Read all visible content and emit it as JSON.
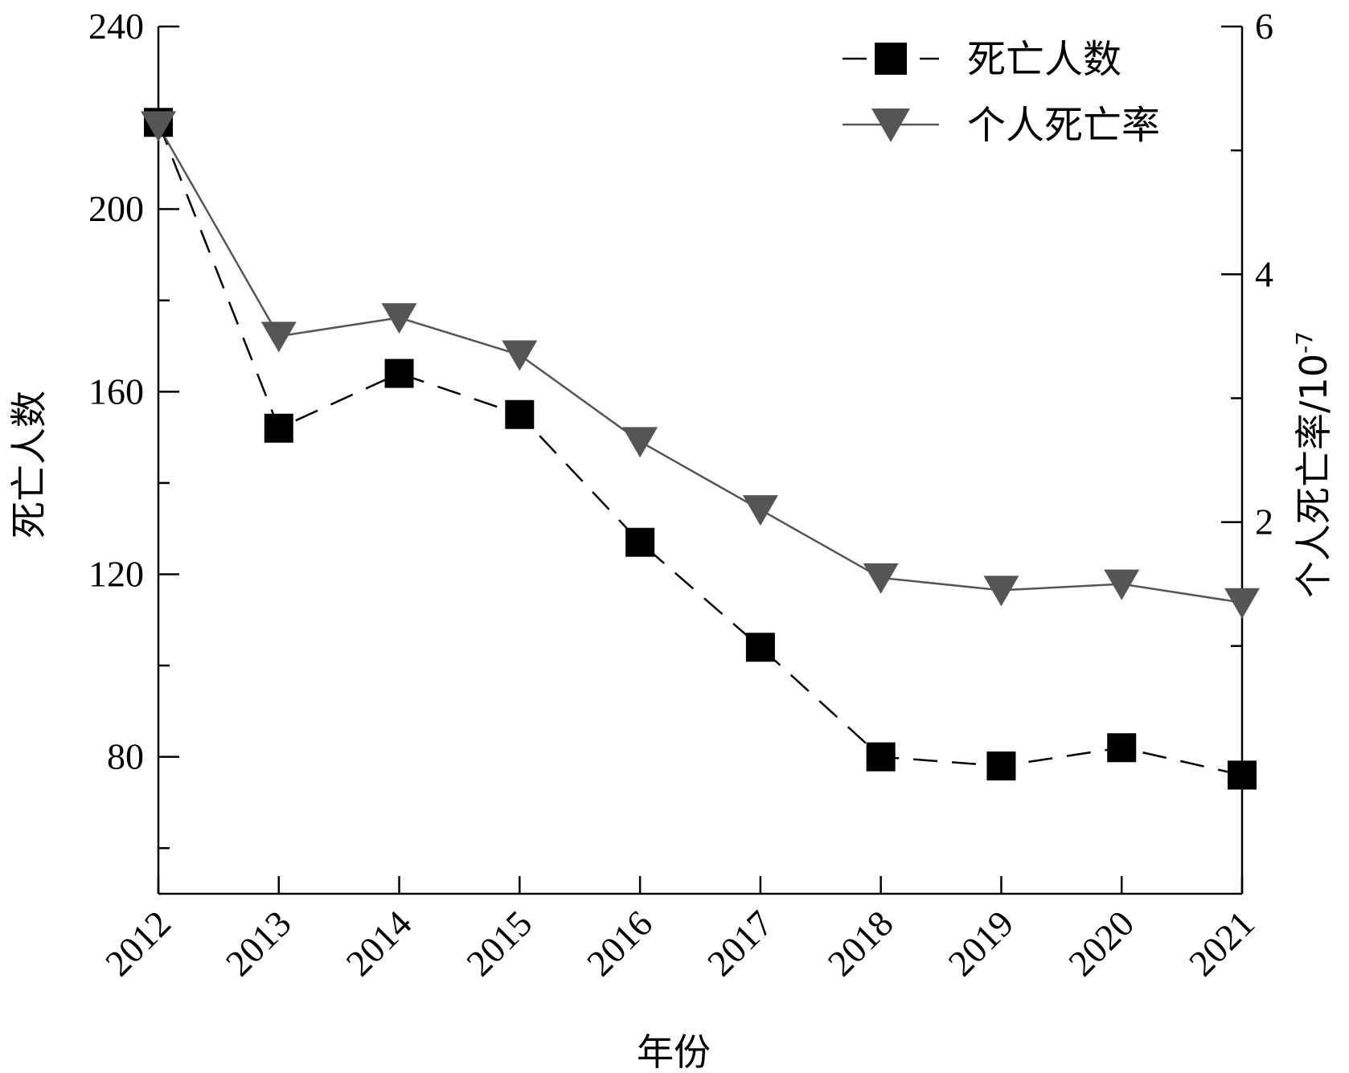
{
  "chart_data": {
    "type": "line",
    "x": [
      "2012",
      "2013",
      "2014",
      "2015",
      "2016",
      "2017",
      "2018",
      "2019",
      "2020",
      "2021"
    ],
    "series": [
      {
        "name": "死亡人数",
        "axis": "left",
        "marker": "square",
        "line_style": "dashed",
        "color": "#000000",
        "values": [
          219,
          152,
          164,
          155,
          127,
          104,
          80,
          78,
          82,
          76
        ]
      },
      {
        "name": "个人死亡率",
        "axis": "right",
        "marker": "triangle-down",
        "line_style": "solid",
        "color": "#555555",
        "values": [
          5.2,
          3.5,
          3.65,
          3.35,
          2.65,
          2.1,
          1.55,
          1.45,
          1.5,
          1.35
        ]
      }
    ],
    "xlabel": "年份",
    "ylabel_left": "死亡人数",
    "ylabel_right": "个人死亡率/10",
    "ylabel_right_exponent": "-7",
    "ylim_left": [
      50,
      240
    ],
    "yticks_left": [
      "80",
      "120",
      "160",
      "200",
      "240"
    ],
    "ylim_right": [
      -1,
      6
    ],
    "yticks_right": [
      "2",
      "4",
      "6"
    ],
    "legend_position": "top-right",
    "grid": false
  }
}
